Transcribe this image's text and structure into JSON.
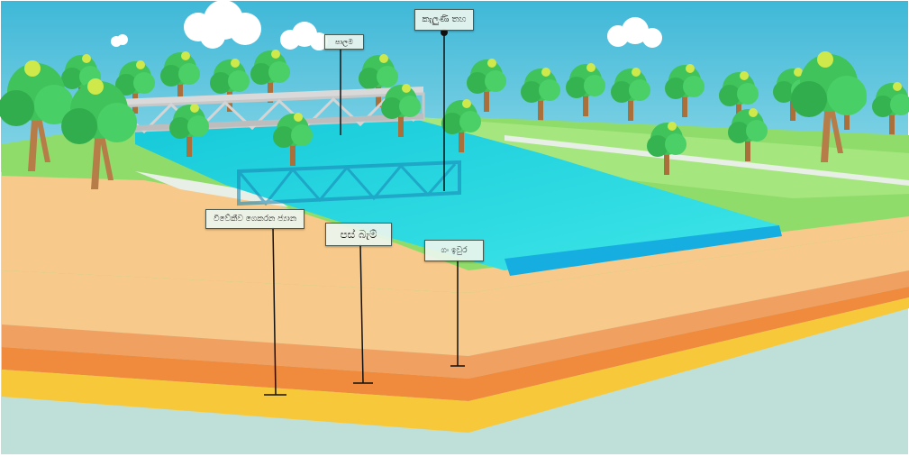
{
  "diagram": {
    "labels": {
      "channel_bed": "කැලුණි තහ",
      "bridge": "පාලම",
      "bank_slope": "විවේකීව ගෙකරන ජ්‍යාන",
      "pass_dam": "පස් බැම්",
      "river_edge": "ගං ඉවුර"
    }
  },
  "colors": {
    "sky": "#4fc3d9",
    "water": "#22d8e2",
    "grass": "#8fdc6a",
    "sand": "#f7c98a",
    "soil_orange": "#f0a060",
    "soil_deep": "#f08a3c",
    "soil_yellow": "#f7c93a",
    "ground_plane": "#bfe0d8"
  }
}
